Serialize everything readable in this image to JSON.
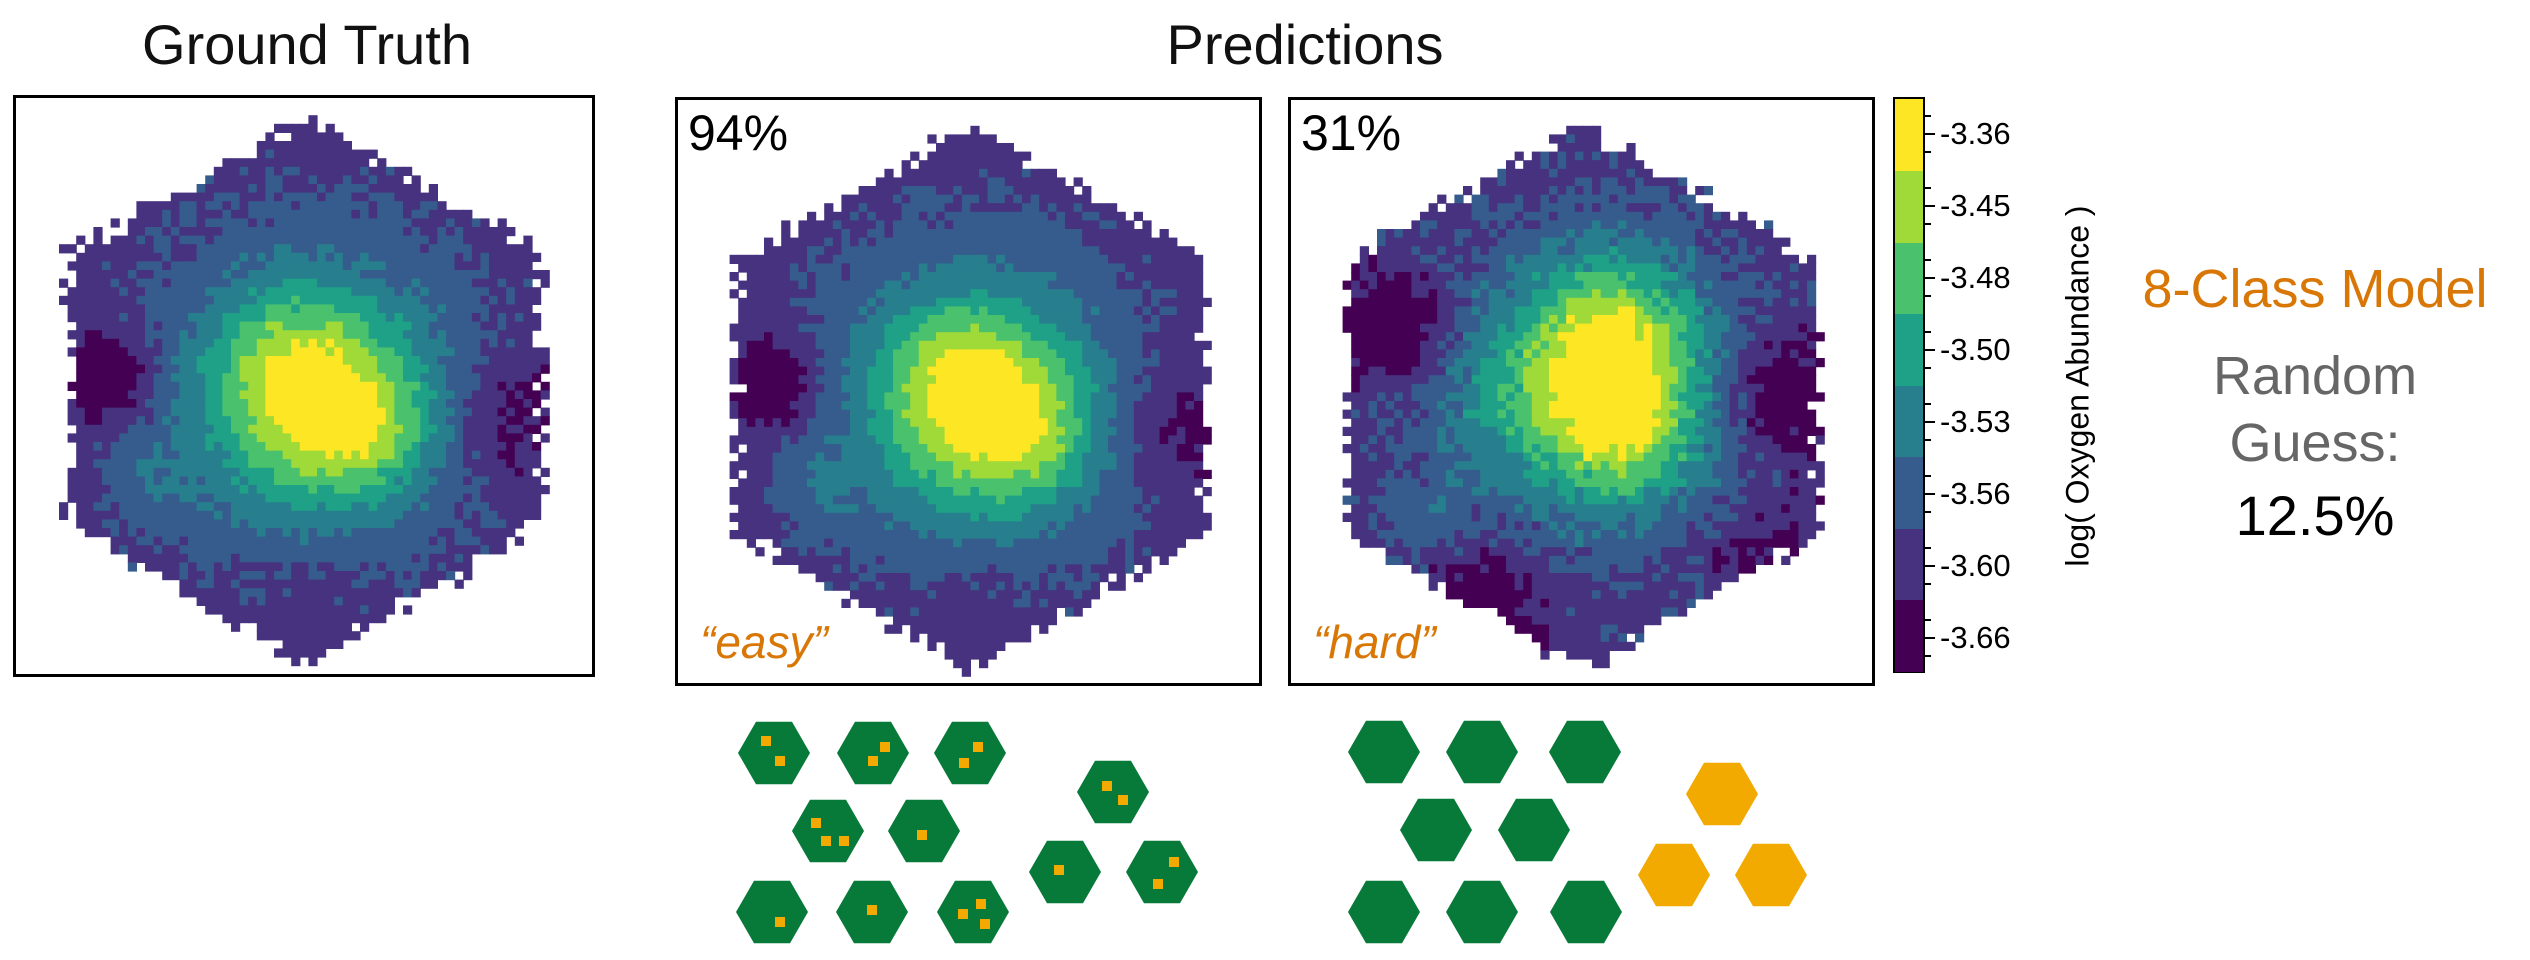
{
  "titles": {
    "ground_truth": "Ground Truth",
    "predictions": "Predictions"
  },
  "panels": {
    "easy": {
      "accuracy": "94%",
      "label": "“easy”"
    },
    "hard": {
      "accuracy": "31%",
      "label": "“hard”"
    }
  },
  "colorbar": {
    "label": "log( Oxygen Abundance )",
    "ticks": [
      "-3.36",
      "-3.45",
      "-3.48",
      "-3.50",
      "-3.53",
      "-3.56",
      "-3.60",
      "-3.66"
    ],
    "colors": [
      "#440154",
      "#46327e",
      "#365c8d",
      "#277f8e",
      "#1fa187",
      "#4ac16d",
      "#a0da39",
      "#fde725"
    ]
  },
  "side_text": {
    "model": "8-Class Model",
    "random_line1": "Random",
    "random_line2": "Guess:",
    "random_value": "12.5%"
  },
  "icon_colors": {
    "green": "#077a3a",
    "orange": "#f2a900"
  },
  "chart_data": {
    "type": "heatmap",
    "title": "",
    "colorbar_label": "log( Oxygen Abundance )",
    "classes": [
      "-3.66",
      "-3.60",
      "-3.56",
      "-3.53",
      "-3.50",
      "-3.48",
      "-3.45",
      "-3.36"
    ],
    "panels": [
      {
        "name": "Ground Truth"
      },
      {
        "name": "Predictions",
        "accuracy": "94%",
        "difficulty": "easy"
      },
      {
        "name": "Predictions",
        "accuracy": "31%",
        "difficulty": "hard"
      }
    ]
  }
}
